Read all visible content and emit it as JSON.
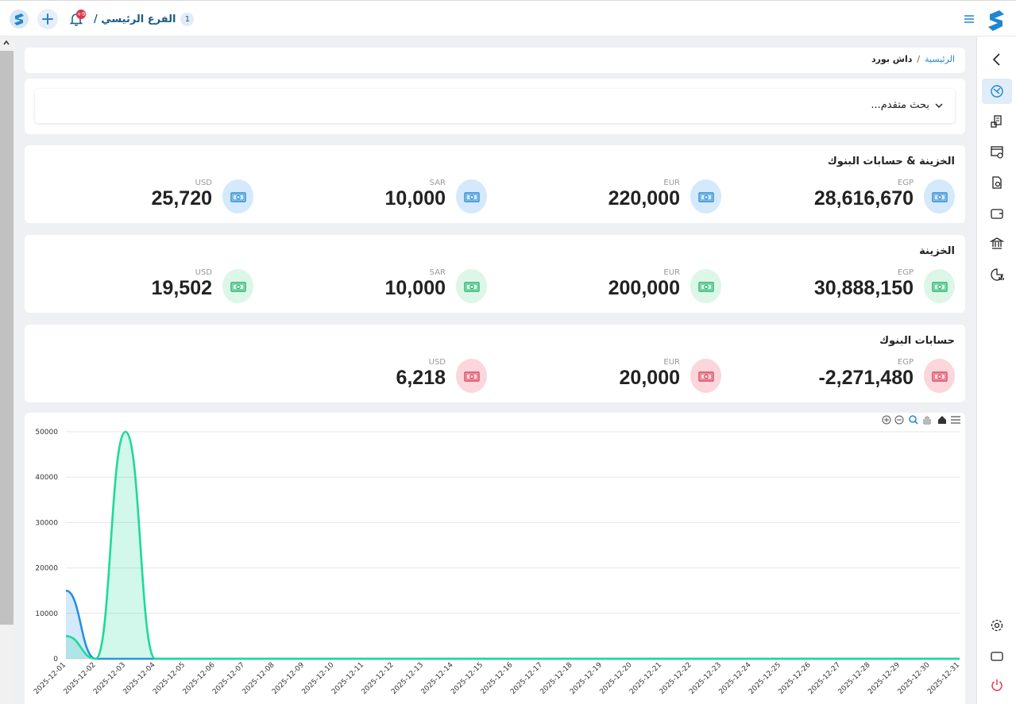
{
  "topbar": {
    "branch_name": "الفرع الرئيسي /",
    "branch_number": "1",
    "notifications_badge": "+9"
  },
  "breadcrumb": {
    "home": "الرئيسية",
    "separator": "/",
    "current": "داش بورد"
  },
  "search": {
    "label": "بحث متقدم..."
  },
  "sections": [
    {
      "title": "الخزينة & حسابات البنوك",
      "color": "#2a8bd0",
      "stats": [
        {
          "currency": "EGP",
          "value": "28,616,670"
        },
        {
          "currency": "EUR",
          "value": "220,000"
        },
        {
          "currency": "SAR",
          "value": "10,000"
        },
        {
          "currency": "USD",
          "value": "25,720"
        }
      ]
    },
    {
      "title": "الخزينة",
      "color": "#21b36b",
      "stats": [
        {
          "currency": "EGP",
          "value": "30,888,150"
        },
        {
          "currency": "EUR",
          "value": "200,000"
        },
        {
          "currency": "SAR",
          "value": "10,000"
        },
        {
          "currency": "USD",
          "value": "19,502"
        }
      ]
    },
    {
      "title": "حسابات البنوك",
      "color": "#d9445e",
      "stats": [
        {
          "currency": "EGP",
          "value": "-2,271,480"
        },
        {
          "currency": "EUR",
          "value": "20,000"
        },
        {
          "currency": "USD",
          "value": "6,218"
        }
      ]
    }
  ],
  "sidebar_icons": [
    "chevron-left-icon",
    "dashboard-icon",
    "invoice-icon",
    "report-icon",
    "document-icon",
    "wallet-icon",
    "bank-icon",
    "chart-icon",
    "settings-icon",
    "window-icon",
    "power-icon"
  ],
  "chart_data": {
    "type": "area",
    "x": [
      "2025-12-01",
      "2025-12-02",
      "2025-12-03",
      "2025-12-04",
      "2025-12-05",
      "2025-12-06",
      "2025-12-07",
      "2025-12-08",
      "2025-12-09",
      "2025-12-10",
      "2025-12-11",
      "2025-12-12",
      "2025-12-13",
      "2025-12-14",
      "2025-12-15",
      "2025-12-16",
      "2025-12-17",
      "2025-12-18",
      "2025-12-19",
      "2025-12-20",
      "2025-12-21",
      "2025-12-22",
      "2025-12-23",
      "2025-12-24",
      "2025-12-25",
      "2025-12-26",
      "2025-12-27",
      "2025-12-28",
      "2025-12-29",
      "2025-12-30",
      "2025-12-31"
    ],
    "series": [
      {
        "color": "#2a8fe0",
        "values": [
          15000,
          0,
          0,
          0,
          0,
          0,
          0,
          0,
          0,
          0,
          0,
          0,
          0,
          0,
          0,
          0,
          0,
          0,
          0,
          0,
          0,
          0,
          0,
          0,
          0,
          0,
          0,
          0,
          0,
          0,
          0
        ]
      },
      {
        "color": "#1ed99a",
        "values": [
          5000,
          0,
          50000,
          0,
          0,
          0,
          0,
          0,
          0,
          0,
          0,
          0,
          0,
          0,
          0,
          0,
          0,
          0,
          0,
          0,
          0,
          0,
          0,
          0,
          0,
          0,
          0,
          0,
          0,
          0,
          0
        ]
      }
    ],
    "yticks": [
      0,
      10000,
      20000,
      30000,
      40000,
      50000
    ],
    "ylim": [
      0,
      50000
    ],
    "grid": true,
    "toolbar": [
      "zoom-in-icon",
      "zoom-out-icon",
      "zoom-select-icon",
      "pan-icon",
      "home-icon",
      "menu-icon"
    ]
  }
}
